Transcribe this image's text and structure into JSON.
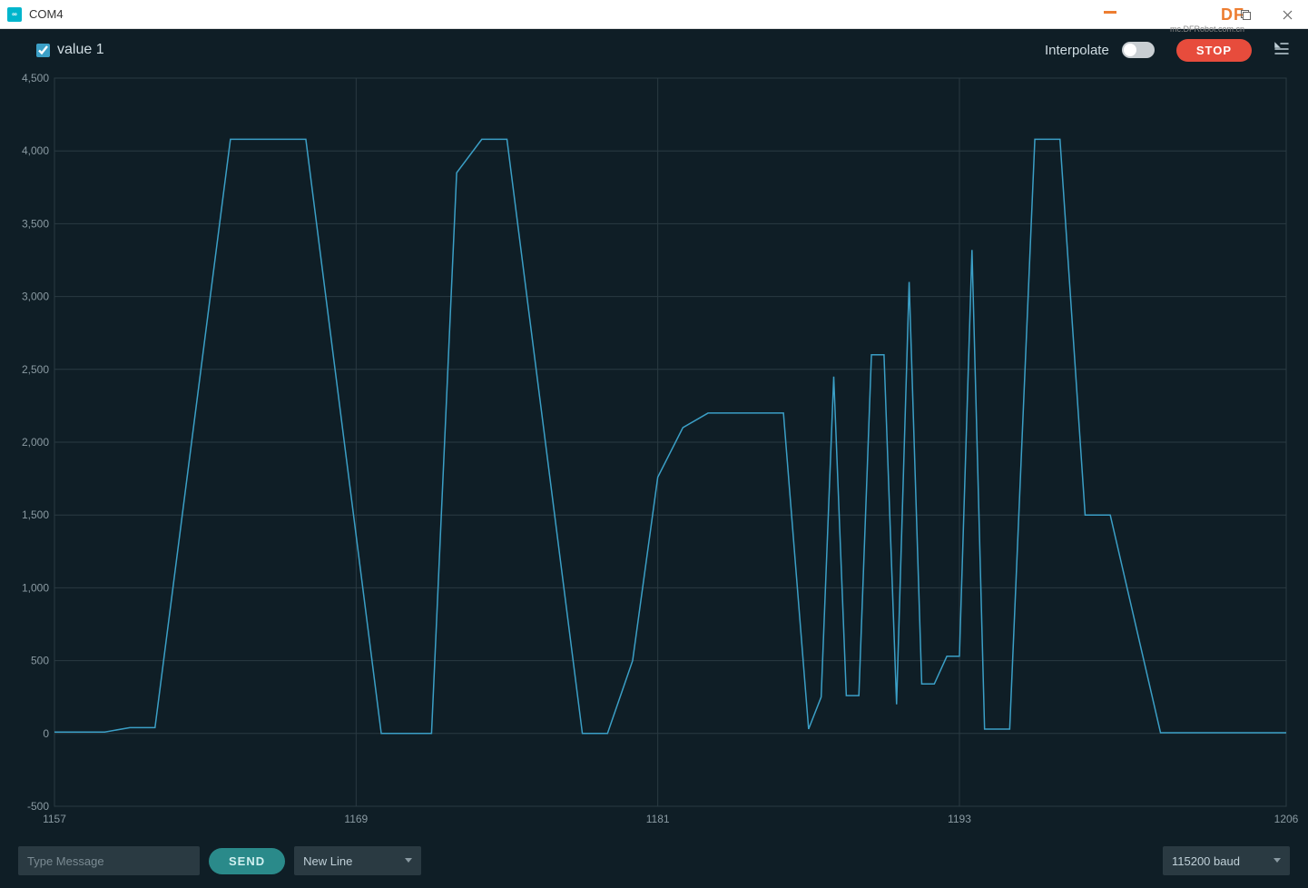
{
  "window": {
    "title": "COM4",
    "watermark_brand": "DF",
    "watermark_url": "mc.DFRobot.com.cn"
  },
  "toolbar": {
    "series_label": "value 1",
    "series_checked": true,
    "interpolate_label": "Interpolate",
    "interpolate_on": false,
    "stop_label": "STOP"
  },
  "chart": {
    "type": "line",
    "line_color": "#3b9fc6",
    "line_width": 1.5,
    "background_color": "#0f1e26",
    "grid_color": "#2a3a42",
    "grid_major_x_step": 12,
    "axis_label_color": "#8a9aa2",
    "axis_label_fontsize": 12,
    "x_min": 1157,
    "x_max": 1206,
    "x_ticks": [
      1157,
      1169,
      1181,
      1193,
      1206
    ],
    "y_min": -500,
    "y_max": 4500,
    "y_ticks": [
      -500,
      0,
      500,
      1000,
      1500,
      2000,
      2500,
      3000,
      3500,
      4000,
      4500
    ],
    "data": [
      {
        "x": 1157,
        "y": 10
      },
      {
        "x": 1159,
        "y": 10
      },
      {
        "x": 1160,
        "y": 40
      },
      {
        "x": 1161,
        "y": 40
      },
      {
        "x": 1164,
        "y": 4080
      },
      {
        "x": 1165,
        "y": 4080
      },
      {
        "x": 1167,
        "y": 4080
      },
      {
        "x": 1170,
        "y": 0
      },
      {
        "x": 1171,
        "y": 0
      },
      {
        "x": 1172,
        "y": 0
      },
      {
        "x": 1173,
        "y": 3850
      },
      {
        "x": 1174,
        "y": 4080
      },
      {
        "x": 1175,
        "y": 4080
      },
      {
        "x": 1178,
        "y": 0
      },
      {
        "x": 1179,
        "y": 0
      },
      {
        "x": 1180,
        "y": 500
      },
      {
        "x": 1181,
        "y": 1760
      },
      {
        "x": 1182,
        "y": 2100
      },
      {
        "x": 1183,
        "y": 2200
      },
      {
        "x": 1184,
        "y": 2200
      },
      {
        "x": 1185,
        "y": 2200
      },
      {
        "x": 1186,
        "y": 2200
      },
      {
        "x": 1187,
        "y": 30
      },
      {
        "x": 1187.5,
        "y": 250
      },
      {
        "x": 1188,
        "y": 2450
      },
      {
        "x": 1188.5,
        "y": 260
      },
      {
        "x": 1189,
        "y": 260
      },
      {
        "x": 1189.5,
        "y": 2600
      },
      {
        "x": 1190,
        "y": 2600
      },
      {
        "x": 1190.5,
        "y": 200
      },
      {
        "x": 1191,
        "y": 3100
      },
      {
        "x": 1191.5,
        "y": 340
      },
      {
        "x": 1192,
        "y": 340
      },
      {
        "x": 1192.5,
        "y": 530
      },
      {
        "x": 1193,
        "y": 530
      },
      {
        "x": 1193.5,
        "y": 3320
      },
      {
        "x": 1194,
        "y": 30
      },
      {
        "x": 1195,
        "y": 30
      },
      {
        "x": 1196,
        "y": 4080
      },
      {
        "x": 1197,
        "y": 4080
      },
      {
        "x": 1198,
        "y": 1500
      },
      {
        "x": 1199,
        "y": 1500
      },
      {
        "x": 1201,
        "y": 5
      },
      {
        "x": 1202,
        "y": 5
      },
      {
        "x": 1206,
        "y": 5
      }
    ]
  },
  "bottombar": {
    "message_placeholder": "Type Message",
    "send_label": "SEND",
    "line_ending_selected": "New Line",
    "baud_selected": "115200 baud"
  }
}
